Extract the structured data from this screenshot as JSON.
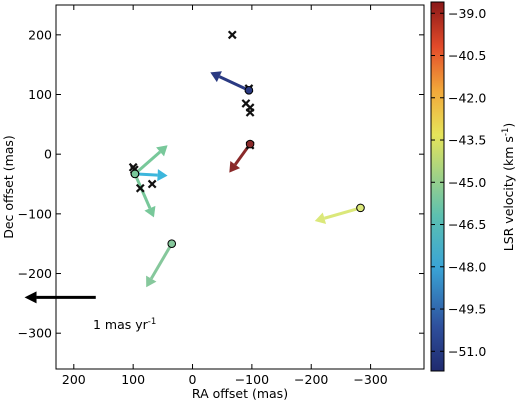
{
  "chart_data": {
    "type": "scatter",
    "title": "",
    "xlabel": "RA offset (mas)",
    "ylabel": "Dec offset (mas)",
    "xlim": [
      230,
      -390
    ],
    "ylim": [
      -360,
      250
    ],
    "x_reversed": true,
    "xticks": [
      200,
      100,
      0,
      -100,
      -200,
      -300
    ],
    "xtick_labels": [
      "200",
      "100",
      "0",
      "−100",
      "−200",
      "−300"
    ],
    "yticks": [
      200,
      100,
      0,
      -100,
      -200,
      -300
    ],
    "ytick_labels": [
      "200",
      "100",
      "0",
      "−100",
      "−200",
      "−300"
    ],
    "grid": false,
    "colorbar": {
      "label_main": "LSR velocity (km s",
      "label_sup": "-1",
      "label_end": ")",
      "range": [
        -51.7,
        -38.6
      ],
      "ticks": [
        -39.0,
        -40.5,
        -42.0,
        -43.5,
        -45.0,
        -46.5,
        -48.0,
        -49.5,
        -51.0
      ],
      "tick_labels": [
        "−39.0",
        "−40.5",
        "−42.0",
        "−43.5",
        "−45.0",
        "−46.5",
        "−48.0",
        "−49.5",
        "−51.0"
      ],
      "colormap": "jet"
    },
    "maser_spots": [
      {
        "x": -95,
        "y": 107,
        "vlsr": -51.2,
        "color": "#2a3a82",
        "dx": -65,
        "dy": 30
      },
      {
        "x": -97,
        "y": 17,
        "vlsr": -40.4,
        "color": "#8a2a2a",
        "dx": -35,
        "dy": -48
      },
      {
        "x": 97,
        "y": -33,
        "vlsr": -47.6,
        "color": "#3cb6dc",
        "dx": 55,
        "dy": -3
      },
      {
        "x": 97,
        "y": -33,
        "vlsr": -46.0,
        "color": "#78c89a",
        "dx": 55,
        "dy": 48
      },
      {
        "x": 97,
        "y": -33,
        "vlsr": -46.0,
        "color": "#78c89a",
        "dx": 32,
        "dy": -73
      },
      {
        "x": 35,
        "y": -150,
        "vlsr": -45.6,
        "color": "#86c89c",
        "dx": -43,
        "dy": -73
      },
      {
        "x": -283,
        "y": -90,
        "vlsr": -44.2,
        "color": "#dbe87a",
        "dx": -77,
        "dy": -22
      }
    ],
    "crosses": [
      {
        "x": -67,
        "y": 200
      },
      {
        "x": -95,
        "y": 110
      },
      {
        "x": -90,
        "y": 85
      },
      {
        "x": -97,
        "y": 78
      },
      {
        "x": -97,
        "y": 70
      },
      {
        "x": -97,
        "y": 15
      },
      {
        "x": 100,
        "y": -22
      },
      {
        "x": 98,
        "y": -26
      },
      {
        "x": 88,
        "y": -57
      },
      {
        "x": 68,
        "y": -50
      }
    ],
    "scale_arrow": {
      "x": 163,
      "y": -240,
      "dx": -120,
      "dy": 0,
      "label_main": "1 mas yr",
      "label_sup": "-1"
    }
  }
}
